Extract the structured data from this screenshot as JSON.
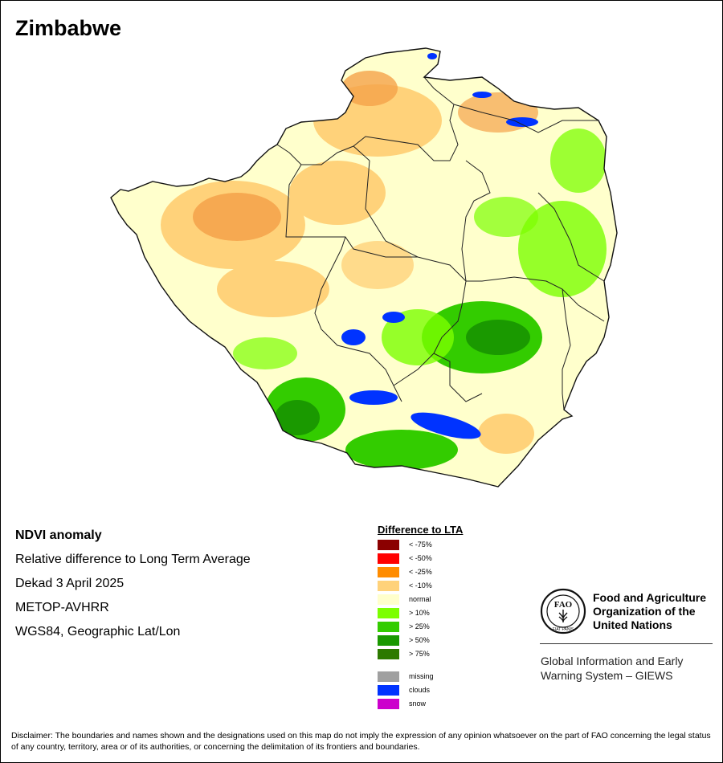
{
  "title": "Zimbabwe",
  "meta": {
    "line1": "NDVI anomaly",
    "line2": "Relative difference to Long Term Average",
    "line3": "Dekad 3 April 2025",
    "line4": "METOP-AVHRR",
    "line5": "WGS84, Geographic Lat/Lon"
  },
  "legend": {
    "title": "Difference to LTA",
    "items": [
      {
        "label": "< -75%",
        "color": "#8b0000"
      },
      {
        "label": "< -50%",
        "color": "#ff0000"
      },
      {
        "label": "< -25%",
        "color": "#ff8c00"
      },
      {
        "label": "< -10%",
        "color": "#ffd27a"
      },
      {
        "label": "normal",
        "color": "#ffffcc"
      },
      {
        "label": "> 10%",
        "color": "#7cff00"
      },
      {
        "label": "> 25%",
        "color": "#33cc00"
      },
      {
        "label": "> 50%",
        "color": "#1a9900"
      },
      {
        "label": "> 75%",
        "color": "#2d7a00"
      }
    ],
    "extra": [
      {
        "label": "missing",
        "color": "#a0a0a0"
      },
      {
        "label": "clouds",
        "color": "#0033ff"
      },
      {
        "label": "snow",
        "color": "#cc00cc"
      }
    ]
  },
  "fao": {
    "name_line1": "Food and Agriculture",
    "name_line2": "Organization of the",
    "name_line3": "United Nations",
    "logo_text": "FAO",
    "logo_motto": "FIAT PANIS",
    "giews_line1": "Global Information and Early",
    "giews_line2": "Warning System – GIEWS"
  },
  "disclaimer": "Disclaimer: The boundaries and names shown and the designations used on this map do not imply the expression of any opinion whatsoever on the part of FAO concerning the legal status of any country, territory, area or of its authorities, or concerning the delimitation of its frontiers and boundaries."
}
